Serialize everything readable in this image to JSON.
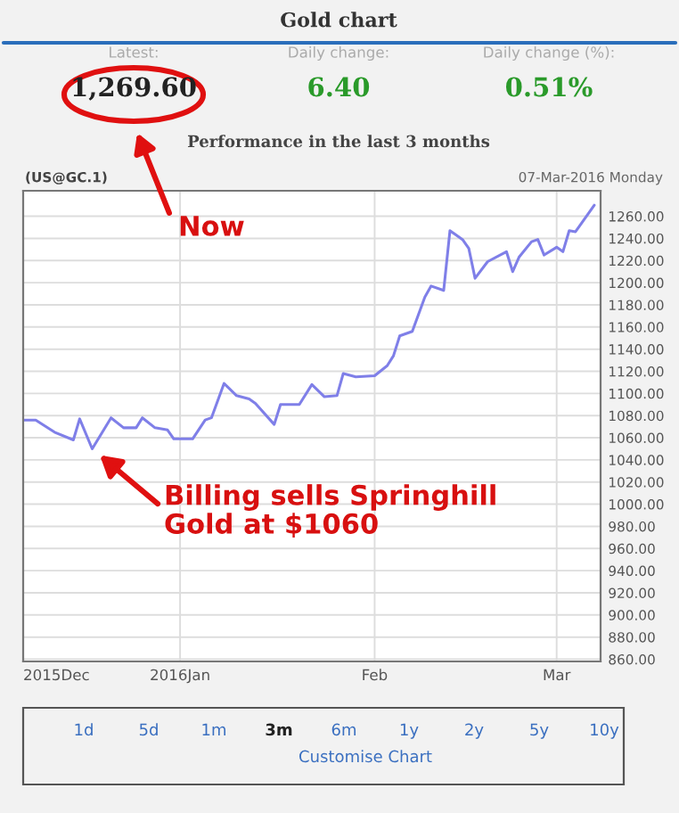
{
  "chart_data": {
    "type": "line",
    "title": "Gold chart",
    "subtitle": "Performance in the last 3 months",
    "x": [
      "2015-12-07",
      "2015-12-09",
      "2015-12-12",
      "2015-12-15",
      "2015-12-16",
      "2015-12-18",
      "2015-12-21",
      "2015-12-23",
      "2015-12-25",
      "2015-12-26",
      "2015-12-28",
      "2015-12-30",
      "2015-12-31",
      "2016-01-03",
      "2016-01-05",
      "2016-01-06",
      "2016-01-08",
      "2016-01-10",
      "2016-01-12",
      "2016-01-13",
      "2016-01-16",
      "2016-01-17",
      "2016-01-20",
      "2016-01-22",
      "2016-01-24",
      "2016-01-26",
      "2016-01-27",
      "2016-01-29",
      "2016-02-01",
      "2016-02-03",
      "2016-02-04",
      "2016-02-05",
      "2016-02-07",
      "2016-02-09",
      "2016-02-10",
      "2016-02-12",
      "2016-02-13",
      "2016-02-15",
      "2016-02-16",
      "2016-02-17",
      "2016-02-19",
      "2016-02-22",
      "2016-02-23",
      "2016-02-24",
      "2016-02-26",
      "2016-02-27",
      "2016-02-28",
      "2016-03-01",
      "2016-03-02",
      "2016-03-03",
      "2016-03-04",
      "2016-03-07"
    ],
    "series": [
      {
        "color": "#7f7fe8",
        "values": [
          1076,
          1076,
          1065,
          1058,
          1077,
          1050,
          1078,
          1069,
          1069,
          1078,
          1069,
          1067,
          1059,
          1059,
          1076,
          1078,
          1109,
          1098,
          1095,
          1091,
          1072,
          1090,
          1090,
          1108,
          1097,
          1098,
          1118,
          1115,
          1116,
          1125,
          1134,
          1152,
          1156,
          1187,
          1197,
          1193,
          1247,
          1239,
          1231,
          1204,
          1219,
          1228,
          1210,
          1223,
          1237,
          1239,
          1225,
          1232,
          1228,
          1247,
          1246,
          1270
        ]
      }
    ],
    "xlim": [
      "2015-12-07",
      "2016-03-08"
    ],
    "xticks": [
      {
        "value": "2015-12-07",
        "label": "2015Dec"
      },
      {
        "value": "2016-01-01",
        "label": "2016Jan"
      },
      {
        "value": "2016-02-01",
        "label": "Feb"
      },
      {
        "value": "2016-03-01",
        "label": "Mar"
      }
    ],
    "ylim": [
      858,
      1283
    ],
    "yticks": [
      {
        "value": 860,
        "label": "860.00"
      },
      {
        "value": 880,
        "label": "880.00"
      },
      {
        "value": 900,
        "label": "900.00"
      },
      {
        "value": 920,
        "label": "920.00"
      },
      {
        "value": 940,
        "label": "940.00"
      },
      {
        "value": 960,
        "label": "960.00"
      },
      {
        "value": 980,
        "label": "980.00"
      },
      {
        "value": 1000,
        "label": "1000.00"
      },
      {
        "value": 1020,
        "label": "1020.00"
      },
      {
        "value": 1040,
        "label": "1040.00"
      },
      {
        "value": 1060,
        "label": "1060.00"
      },
      {
        "value": 1080,
        "label": "1080.00"
      },
      {
        "value": 1100,
        "label": "1100.00"
      },
      {
        "value": 1120,
        "label": "1120.00"
      },
      {
        "value": 1140,
        "label": "1140.00"
      },
      {
        "value": 1160,
        "label": "1160.00"
      },
      {
        "value": 1180,
        "label": "1180.00"
      },
      {
        "value": 1200,
        "label": "1200.00"
      },
      {
        "value": 1220,
        "label": "1220.00"
      },
      {
        "value": 1240,
        "label": "1240.00"
      },
      {
        "value": 1260,
        "label": "1260.00"
      }
    ],
    "grid": true,
    "annotations": [
      "Latest:",
      "1,269.60",
      "Daily change:",
      "6.40",
      "Daily change (%):",
      "0.51%",
      "(US@GC.1)",
      "07-Mar-2016 Monday",
      "Now",
      {
        "text": "Billing sells Springhill\nGold at $1060",
        "x": "2015-12-18",
        "y": 1050
      },
      "1d",
      "5d",
      "1m",
      "3m",
      "6m",
      "1y",
      "2y",
      "5y",
      "10y",
      "Customise Chart"
    ]
  }
}
